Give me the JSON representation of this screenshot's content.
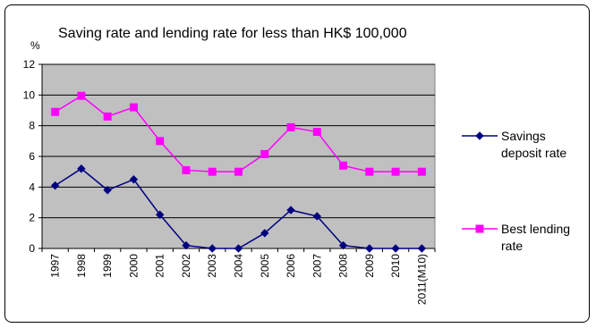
{
  "chart_data": {
    "type": "line",
    "title": "Saving rate and lending rate for less than HK$ 100,000",
    "ylabel": "%",
    "xlabel": "",
    "ylim": [
      0,
      12
    ],
    "yticks": [
      0,
      2,
      4,
      6,
      8,
      10,
      12
    ],
    "grid": true,
    "legend_position": "right",
    "categories": [
      "1997",
      "1998",
      "1999",
      "2000",
      "2001",
      "2002",
      "2003",
      "2004",
      "2005",
      "2006",
      "2007",
      "2008",
      "2009",
      "2010",
      "2011(M10)"
    ],
    "series": [
      {
        "name": "Savings deposit rate",
        "legend_lines": [
          "Savings",
          "deposit rate"
        ],
        "color": "#000080",
        "marker": "diamond",
        "values": [
          4.1,
          5.2,
          3.8,
          4.5,
          2.2,
          0.2,
          0.0,
          0.0,
          1.0,
          2.5,
          2.1,
          0.2,
          0.0,
          0.0,
          0.0
        ]
      },
      {
        "name": "Best lending rate",
        "legend_lines": [
          "Best lending",
          "rate"
        ],
        "color": "#FF00FF",
        "marker": "square",
        "values": [
          8.9,
          9.95,
          8.6,
          9.2,
          7.0,
          5.1,
          5.0,
          5.0,
          6.15,
          7.9,
          7.6,
          5.4,
          5.0,
          5.0,
          5.0
        ]
      }
    ],
    "plot_background": "#C0C0C0"
  }
}
